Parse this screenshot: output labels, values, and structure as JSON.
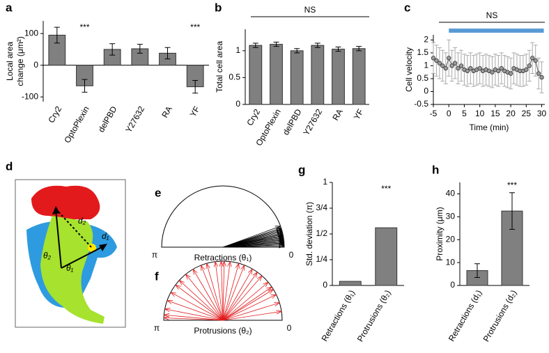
{
  "chart_data": [
    {
      "type": "bar",
      "label": "a",
      "ylabel": [
        "Local area",
        "change (μm²)"
      ],
      "categories": [
        "Cry2",
        "OptoPlexin",
        "delPBD",
        "Y27632",
        "RA",
        "YF"
      ],
      "values": [
        95,
        -65,
        50,
        52,
        38,
        -68
      ],
      "errors": [
        25,
        20,
        18,
        14,
        18,
        20
      ],
      "ylim": [
        -115,
        140
      ],
      "yticks": [
        -100,
        0,
        100
      ],
      "color": "#808080",
      "annotations": [
        {
          "text": "***",
          "category": "OptoPlexin"
        },
        {
          "text": "***",
          "category": "YF"
        }
      ]
    },
    {
      "type": "bar",
      "label": "b",
      "ylabel": [
        "Total cell area"
      ],
      "categories": [
        "Cry2",
        "OptoPlexin",
        "delPBD",
        "Y27632",
        "RA",
        "YF"
      ],
      "values": [
        1.1,
        1.12,
        1.0,
        1.1,
        1.03,
        1.04
      ],
      "errors": [
        0.04,
        0.04,
        0.04,
        0.04,
        0.04,
        0.04
      ],
      "ylim": [
        0,
        1.4
      ],
      "yticks": [
        0,
        0.5,
        1
      ],
      "color": "#808080",
      "bracket_label": "NS"
    },
    {
      "type": "line",
      "label": "c",
      "ylabel": [
        "Cell velocity"
      ],
      "xlabel": "Time (min)",
      "x": [
        -5,
        -4,
        -3,
        -2,
        -1,
        0,
        1,
        2,
        3,
        4,
        5,
        6,
        7,
        8,
        9,
        10,
        11,
        12,
        13,
        14,
        15,
        16,
        17,
        18,
        19,
        20,
        21,
        22,
        23,
        24,
        25,
        26,
        27,
        28,
        29,
        30
      ],
      "values": [
        1.3,
        1.2,
        1.1,
        1.0,
        0.9,
        1.3,
        1.0,
        1.1,
        0.9,
        1.0,
        0.85,
        0.8,
        0.9,
        0.8,
        0.85,
        0.9,
        0.8,
        0.85,
        0.8,
        0.75,
        0.85,
        0.8,
        0.9,
        0.8,
        0.75,
        0.7,
        0.9,
        0.85,
        0.8,
        0.8,
        0.85,
        1.0,
        1.3,
        1.2,
        0.7,
        0.55
      ],
      "errors": [
        0.6,
        0.6,
        0.6,
        0.6,
        0.6,
        0.7,
        0.6,
        0.6,
        0.6,
        0.6,
        0.6,
        0.6,
        0.6,
        0.6,
        0.6,
        0.6,
        0.6,
        0.6,
        0.6,
        0.6,
        0.6,
        0.6,
        0.6,
        0.6,
        0.6,
        0.6,
        0.6,
        0.6,
        0.6,
        0.6,
        0.6,
        0.6,
        0.6,
        0.6,
        0.6,
        0.6
      ],
      "xlim": [
        -5,
        31
      ],
      "xticks": [
        -5,
        0,
        5,
        10,
        15,
        20,
        25,
        30
      ],
      "ylim": [
        -0.5,
        2.2
      ],
      "yticks": [
        -0.5,
        0,
        0.5,
        1,
        1.5,
        2
      ],
      "color": "#999999",
      "bracket_label": "NS",
      "stimulus_color": "#5b9bd5"
    },
    {
      "type": "polar",
      "label": "e",
      "xlabel": "Retractions (θ₁)",
      "color": "#000000",
      "xticks": [
        {
          "value": 3.14159,
          "label": "π"
        },
        0
      ],
      "values": [
        0.02,
        0.04,
        0.06,
        0.07,
        0.09,
        0.1,
        0.12,
        0.13,
        0.15,
        0.16,
        0.18,
        0.19,
        0.21,
        0.22,
        0.24,
        0.26,
        0.28,
        0.3,
        0.32,
        0.35
      ]
    },
    {
      "type": "polar",
      "label": "f",
      "xlabel": "Protrusions (θ₂)",
      "color": "#e31a1c",
      "xticks": [
        {
          "value": 3.14159,
          "label": "π"
        },
        0
      ],
      "values": [
        0.15,
        0.3,
        0.45,
        0.55,
        0.6,
        0.7,
        0.85,
        0.95,
        1.05,
        1.2,
        1.3,
        1.45,
        1.55,
        1.6,
        1.7,
        1.85,
        1.95,
        2.1,
        2.25,
        2.4,
        2.5,
        2.65,
        2.8,
        2.95,
        3.05,
        3.1
      ]
    },
    {
      "type": "bar",
      "label": "g",
      "ylabel": [
        "Std. deviation (π)"
      ],
      "categories": [
        "Retractions (θ₁)",
        "Protrusions (θ₂)"
      ],
      "values": [
        0.04,
        0.56
      ],
      "ylim": [
        0,
        1
      ],
      "yticks": [
        0,
        {
          "value": 0.25,
          "label": "1/4"
        },
        {
          "value": 0.5,
          "label": "1/2"
        },
        {
          "value": 0.75,
          "label": "3/4"
        },
        1
      ],
      "color": "#808080",
      "annotations": [
        {
          "text": "***",
          "category": "Protrusions (θ₂)"
        }
      ]
    },
    {
      "type": "bar",
      "label": "h",
      "ylabel": [
        "Proximity (μm)"
      ],
      "categories": [
        "Retractions (d₁)",
        "Protrusions (d₂)"
      ],
      "values": [
        6.5,
        32.5
      ],
      "errors": [
        3,
        8
      ],
      "ylim": [
        0,
        45
      ],
      "yticks": [
        0,
        10,
        20,
        30,
        40
      ],
      "color": "#808080",
      "annotations": [
        {
          "text": "***",
          "category": "Protrusions (d₂)"
        }
      ]
    }
  ],
  "diagram": {
    "label": "d",
    "labels": [
      "d₂",
      "d₁",
      "θ₂",
      "θ₁"
    ]
  }
}
